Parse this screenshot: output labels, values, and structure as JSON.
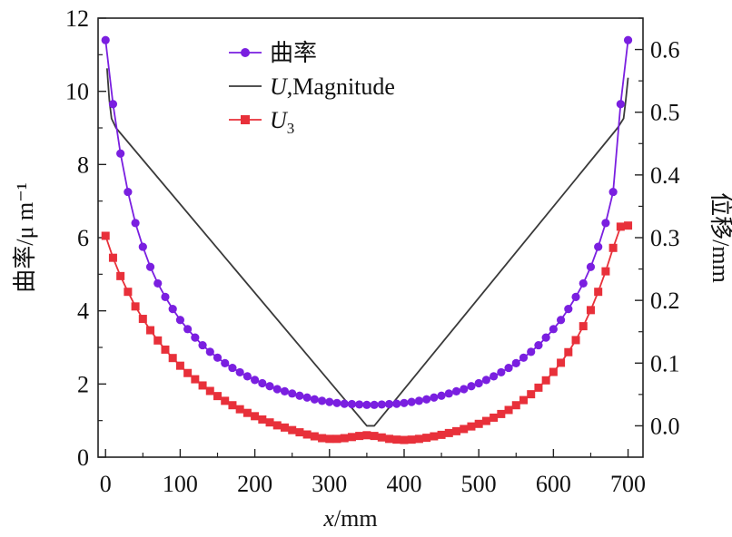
{
  "chart_data": {
    "type": "line",
    "title": "",
    "xlabel": {
      "var": "x",
      "unit": "/mm"
    },
    "ylabel_left": "曲率/μ m⁻¹",
    "ylabel_right": "位移/mm",
    "xlim": [
      -10,
      720
    ],
    "ylim_left": [
      0,
      12
    ],
    "ylim_right": [
      -0.05,
      0.65
    ],
    "x_ticks": [
      0,
      100,
      200,
      300,
      400,
      500,
      600,
      700
    ],
    "x_tick_labels": [
      "0",
      "100",
      "200",
      "300",
      "400",
      "500",
      "600",
      "700"
    ],
    "y_left_ticks": [
      0,
      2,
      4,
      6,
      8,
      10,
      12
    ],
    "y_left_tick_labels": [
      "0",
      "2",
      "4",
      "6",
      "8",
      "10",
      "12"
    ],
    "y_right_ticks": [
      0.0,
      0.1,
      0.2,
      0.3,
      0.4,
      0.5,
      0.6
    ],
    "y_right_tick_labels": [
      "0.0",
      "0.1",
      "0.2",
      "0.3",
      "0.4",
      "0.5",
      "0.6"
    ],
    "grid": false,
    "legend_position": "top-left",
    "legend": [
      {
        "label": "曲率",
        "marker": "circle",
        "color": "#7a1fe0"
      },
      {
        "label_var": "U",
        "label_rest": ",Magnitude",
        "marker": "none",
        "color": "#3a3a3a"
      },
      {
        "label_var": "U",
        "label_sub": "3",
        "marker": "square",
        "color": "#e8303a"
      }
    ],
    "series": [
      {
        "axis": "left",
        "marker": "circle",
        "color": "#7a1fe0",
        "x": [
          0,
          10,
          20,
          30,
          40,
          50,
          60,
          70,
          80,
          90,
          100,
          110,
          120,
          130,
          140,
          150,
          160,
          170,
          180,
          190,
          200,
          210,
          220,
          230,
          240,
          250,
          260,
          270,
          280,
          290,
          300,
          310,
          320,
          330,
          340,
          350,
          360,
          370,
          380,
          390,
          400,
          410,
          420,
          430,
          440,
          450,
          460,
          470,
          480,
          490,
          500,
          510,
          520,
          530,
          540,
          550,
          560,
          570,
          580,
          590,
          600,
          610,
          620,
          630,
          640,
          650,
          660,
          670,
          680,
          690,
          700
        ],
        "y": [
          11.4,
          9.65,
          8.3,
          7.25,
          6.4,
          5.75,
          5.2,
          4.75,
          4.38,
          4.05,
          3.75,
          3.5,
          3.27,
          3.06,
          2.88,
          2.72,
          2.57,
          2.44,
          2.32,
          2.21,
          2.11,
          2.02,
          1.94,
          1.86,
          1.8,
          1.74,
          1.68,
          1.63,
          1.58,
          1.54,
          1.51,
          1.48,
          1.46,
          1.45,
          1.44,
          1.43,
          1.43,
          1.44,
          1.45,
          1.46,
          1.48,
          1.51,
          1.54,
          1.58,
          1.63,
          1.68,
          1.74,
          1.8,
          1.86,
          1.94,
          2.02,
          2.11,
          2.21,
          2.32,
          2.44,
          2.57,
          2.72,
          2.88,
          3.06,
          3.27,
          3.5,
          3.75,
          4.05,
          4.38,
          4.75,
          5.2,
          5.75,
          6.4,
          7.25,
          9.65,
          11.4
        ]
      },
      {
        "axis": "right",
        "marker": "none",
        "color": "#3a3a3a",
        "x": [
          2,
          5,
          8,
          14,
          350,
          360,
          686,
          694,
          697,
          700
        ],
        "y": [
          0.57,
          0.52,
          0.49,
          0.475,
          0.0,
          0.0,
          0.475,
          0.49,
          0.52,
          0.555
        ]
      },
      {
        "axis": "left",
        "marker": "square",
        "color": "#e8303a",
        "x": [
          0,
          10,
          20,
          30,
          40,
          50,
          60,
          70,
          80,
          90,
          100,
          110,
          120,
          130,
          140,
          150,
          160,
          170,
          180,
          190,
          200,
          210,
          220,
          230,
          240,
          250,
          260,
          270,
          280,
          290,
          300,
          310,
          320,
          330,
          340,
          350,
          360,
          370,
          380,
          390,
          400,
          410,
          420,
          430,
          440,
          450,
          460,
          470,
          480,
          490,
          500,
          510,
          520,
          530,
          540,
          550,
          560,
          570,
          580,
          590,
          600,
          610,
          620,
          630,
          640,
          650,
          660,
          670,
          680,
          690,
          700
        ],
        "y": [
          6.05,
          5.45,
          4.95,
          4.52,
          4.12,
          3.78,
          3.47,
          3.19,
          2.94,
          2.71,
          2.5,
          2.3,
          2.13,
          1.96,
          1.81,
          1.67,
          1.54,
          1.42,
          1.31,
          1.21,
          1.12,
          1.03,
          0.95,
          0.87,
          0.81,
          0.74,
          0.68,
          0.62,
          0.57,
          0.52,
          0.5,
          0.5,
          0.52,
          0.55,
          0.58,
          0.6,
          0.58,
          0.54,
          0.5,
          0.48,
          0.47,
          0.48,
          0.5,
          0.53,
          0.57,
          0.61,
          0.66,
          0.71,
          0.77,
          0.84,
          0.91,
          0.99,
          1.08,
          1.18,
          1.29,
          1.42,
          1.56,
          1.72,
          1.9,
          2.1,
          2.33,
          2.58,
          2.87,
          3.2,
          3.58,
          4.02,
          4.52,
          5.08,
          5.72,
          6.3,
          6.33
        ]
      }
    ]
  }
}
